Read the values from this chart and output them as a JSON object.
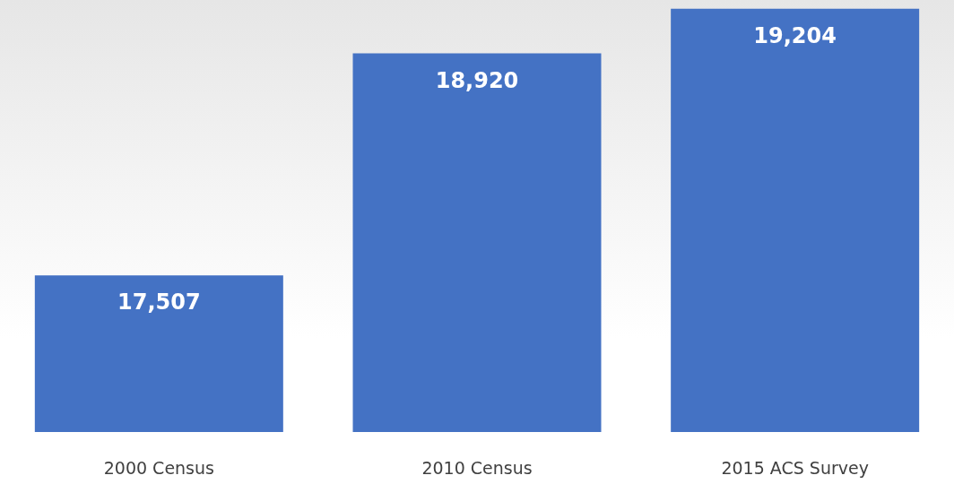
{
  "chart_data": {
    "type": "bar",
    "categories": [
      "2000 Census",
      "2010 Census",
      "2015 ACS Survey"
    ],
    "values": [
      17507,
      18920,
      19204
    ],
    "value_labels": [
      "17,507",
      "18,920",
      "19,204"
    ],
    "color": "#4472c4",
    "ylim": [
      16510,
      19260
    ],
    "tick_labels": "x"
  }
}
